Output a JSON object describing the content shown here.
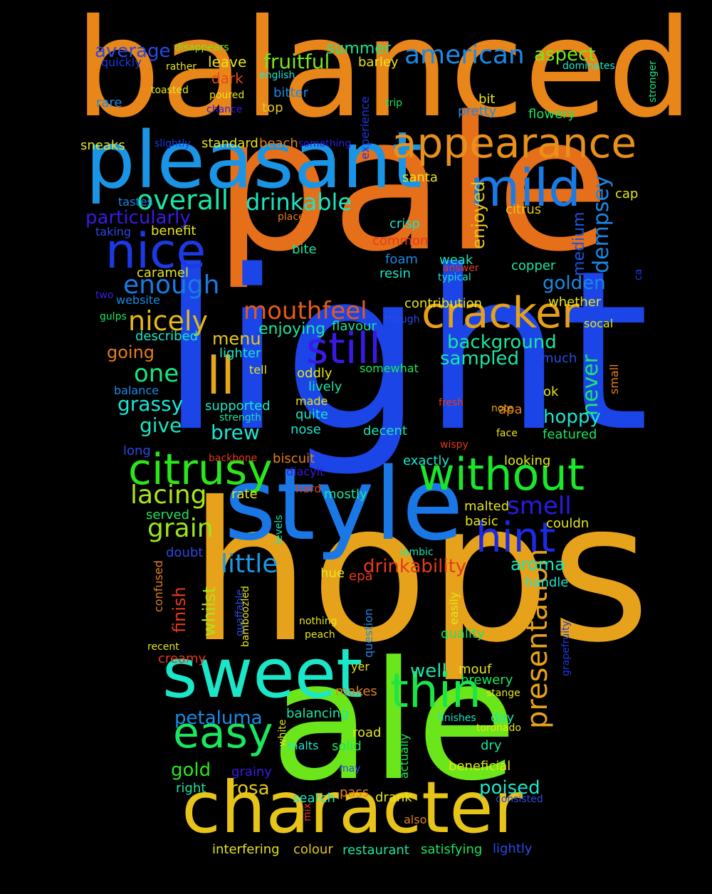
{
  "words": [
    {
      "t": "balanced",
      "c": "#e8861a"
    },
    {
      "t": "pale",
      "c": "#e66f1a"
    },
    {
      "t": "light",
      "c": "#1b45e6"
    },
    {
      "t": "hops",
      "c": "#e6a21a"
    },
    {
      "t": "ale",
      "c": "#6be61a"
    },
    {
      "t": "style",
      "c": "#1a78e6"
    },
    {
      "t": "pleasant",
      "c": "#1a95e6"
    },
    {
      "t": "character",
      "c": "#e6c41a"
    },
    {
      "t": "sweet",
      "c": "#1ae6c8"
    },
    {
      "t": "appearance",
      "c": "#e8901a"
    },
    {
      "t": "mild",
      "c": "#1a7ae6"
    },
    {
      "t": "nice",
      "c": "#1a3ae6"
    },
    {
      "t": "without",
      "c": "#1ae62a"
    },
    {
      "t": "citrusy",
      "c": "#2ae61a"
    },
    {
      "t": "cracker",
      "c": "#e6a01a"
    },
    {
      "t": "thin",
      "c": "#1ae648"
    },
    {
      "t": "still",
      "c": "#3a1ae6"
    },
    {
      "t": "ll",
      "c": "#e6a81a"
    },
    {
      "t": "hint",
      "c": "#1a2ae6"
    },
    {
      "t": "easy",
      "c": "#1ae660"
    },
    {
      "t": "presentation",
      "c": "#e6a21a"
    },
    {
      "t": "american",
      "c": "#1a8ae6"
    },
    {
      "t": "overall",
      "c": "#1ae6a8"
    },
    {
      "t": "drinkable",
      "c": "#1ae6c0"
    },
    {
      "t": "mouthfeel",
      "c": "#e65a1a"
    },
    {
      "t": "enough",
      "c": "#1a7ae6"
    },
    {
      "t": "nicely",
      "c": "#e6b81a"
    },
    {
      "t": "lacing",
      "c": "#a8e61a"
    },
    {
      "t": "grain",
      "c": "#9ae61a"
    },
    {
      "t": "little",
      "c": "#1a9ae6"
    },
    {
      "t": "one",
      "c": "#1ae680"
    },
    {
      "t": "dempsey",
      "c": "#1a88e6"
    },
    {
      "t": "smell",
      "c": "#2a1ae6"
    },
    {
      "t": "never",
      "c": "#1ae670"
    },
    {
      "t": "drinkability",
      "c": "#e63a1a"
    },
    {
      "t": "fruitful",
      "c": "#78e61a"
    },
    {
      "t": "aspect",
      "c": "#78e61a"
    },
    {
      "t": "summer",
      "c": "#1ae690"
    },
    {
      "t": "average",
      "c": "#2a4ae6"
    },
    {
      "t": "particularly",
      "c": "#3a1ae6"
    },
    {
      "t": "enjoyed",
      "c": "#e6c81a"
    },
    {
      "t": "medium",
      "c": "#1a58e6"
    },
    {
      "t": "golden",
      "c": "#1a8ae6"
    },
    {
      "t": "background",
      "c": "#1ae6a0"
    },
    {
      "t": "sampled",
      "c": "#1ae6a8"
    },
    {
      "t": "hoppy",
      "c": "#1ae6d0"
    },
    {
      "t": "poised",
      "c": "#1ae6c8"
    },
    {
      "t": "rosa",
      "c": "#e6c81a"
    },
    {
      "t": "petaluma",
      "c": "#1a8ae6"
    },
    {
      "t": "gold",
      "c": "#2ae61a"
    },
    {
      "t": "grassy",
      "c": "#1ae6d8"
    },
    {
      "t": "give",
      "c": "#1ae6c0"
    },
    {
      "t": "brew",
      "c": "#1ae6d0"
    },
    {
      "t": "menu",
      "c": "#e6c81a"
    },
    {
      "t": "finish",
      "c": "#e63a1a"
    },
    {
      "t": "whilst",
      "c": "#a8e61a"
    },
    {
      "t": "well",
      "c": "#1ae6a8"
    },
    {
      "t": "aroma",
      "c": "#1ae6b8"
    },
    {
      "t": "going",
      "c": "#e6801a"
    },
    {
      "t": "enjoying",
      "c": "#1ae6a0"
    },
    {
      "t": "disappears",
      "c": "#78e61a"
    },
    {
      "t": "quickly",
      "c": "#1a3ae6"
    },
    {
      "t": "rather",
      "c": "#e6e61a"
    },
    {
      "t": "english",
      "c": "#1ae6d0"
    },
    {
      "t": "toasted",
      "c": "#e6e61a"
    },
    {
      "t": "poured",
      "c": "#e6e61a"
    },
    {
      "t": "dark",
      "c": "#e64a1a"
    },
    {
      "t": "leave",
      "c": "#e6e61a"
    },
    {
      "t": "barley",
      "c": "#e6e61a"
    },
    {
      "t": "rare",
      "c": "#1a8ae6"
    },
    {
      "t": "chance",
      "c": "#3a1ae6"
    },
    {
      "t": "bitter",
      "c": "#1a8ae6"
    },
    {
      "t": "top",
      "c": "#e6c81a"
    },
    {
      "t": "experience",
      "c": "#1a3ae6"
    },
    {
      "t": "trip",
      "c": "#1ae660"
    },
    {
      "t": "pretty",
      "c": "#1a8ae6"
    },
    {
      "t": "bit",
      "c": "#e6e61a"
    },
    {
      "t": "dominates",
      "c": "#1ae6c8"
    },
    {
      "t": "flowery",
      "c": "#1ae660"
    },
    {
      "t": "stronger",
      "c": "#1ae680"
    },
    {
      "t": "slightly",
      "c": "#1a3ae6"
    },
    {
      "t": "standard",
      "c": "#e6e61a"
    },
    {
      "t": "beach",
      "c": "#e6801a"
    },
    {
      "t": "something",
      "c": "#2a1ae6"
    },
    {
      "t": "sneaks",
      "c": "#e6e61a"
    },
    {
      "t": "santa",
      "c": "#e6e61a"
    },
    {
      "t": "tastes",
      "c": "#1a8ae6"
    },
    {
      "t": "taking",
      "c": "#2a4ae6"
    },
    {
      "t": "benefit",
      "c": "#e6e61a"
    },
    {
      "t": "place",
      "c": "#e6801a"
    },
    {
      "t": "crisp",
      "c": "#1ae6c8"
    },
    {
      "t": "common",
      "c": "#e63a1a"
    },
    {
      "t": "citrus",
      "c": "#e6c81a"
    },
    {
      "t": "cap",
      "c": "#e6e61a"
    },
    {
      "t": "caramel",
      "c": "#e6e61a"
    },
    {
      "t": "bite",
      "c": "#1ae6a0"
    },
    {
      "t": "foam",
      "c": "#1a8ae6"
    },
    {
      "t": "resin",
      "c": "#1ae6c8"
    },
    {
      "t": "weak",
      "c": "#1ae6b8"
    },
    {
      "t": "answer",
      "c": "#e63a1a"
    },
    {
      "t": "typical",
      "c": "#1ae6d0"
    },
    {
      "t": "copper",
      "c": "#1ae6a8"
    },
    {
      "t": "ca",
      "c": "#1a3ae6"
    },
    {
      "t": "two",
      "c": "#3a1ae6"
    },
    {
      "t": "website",
      "c": "#1a8ae6"
    },
    {
      "t": "gulps",
      "c": "#1ae660"
    },
    {
      "t": "described",
      "c": "#1ae6c8"
    },
    {
      "t": "contribution",
      "c": "#e6e61a"
    },
    {
      "t": "though",
      "c": "#2a4ae6"
    },
    {
      "t": "flavour",
      "c": "#1ae6a0"
    },
    {
      "t": "whether",
      "c": "#e6e61a"
    },
    {
      "t": "socal",
      "c": "#e6e61a"
    },
    {
      "t": "lighter",
      "c": "#1ae6d0"
    },
    {
      "t": "tell",
      "c": "#e6e61a"
    },
    {
      "t": "somewhat",
      "c": "#1ae660"
    },
    {
      "t": "much",
      "c": "#2a4ae6"
    },
    {
      "t": "small",
      "c": "#e6801a"
    },
    {
      "t": "oddly",
      "c": "#e6e61a"
    },
    {
      "t": "lively",
      "c": "#1ae6a8"
    },
    {
      "t": "balance",
      "c": "#1a8ae6"
    },
    {
      "t": "made",
      "c": "#e6e61a"
    },
    {
      "t": "apa",
      "c": "#e6801a"
    },
    {
      "t": "ok",
      "c": "#e6e61a"
    },
    {
      "t": "supported",
      "c": "#1ae6c8"
    },
    {
      "t": "strength",
      "c": "#1ae6a0"
    },
    {
      "t": "quite",
      "c": "#1ae6d0"
    },
    {
      "t": "fresh",
      "c": "#e63a1a"
    },
    {
      "t": "note",
      "c": "#e6a81a"
    },
    {
      "t": "nose",
      "c": "#1ae6c8"
    },
    {
      "t": "decent",
      "c": "#1ae6b8"
    },
    {
      "t": "face",
      "c": "#e6e61a"
    },
    {
      "t": "featured",
      "c": "#1ae660"
    },
    {
      "t": "long",
      "c": "#2a4ae6"
    },
    {
      "t": "wispy",
      "c": "#e63a1a"
    },
    {
      "t": "backbone",
      "c": "#e63a1a"
    },
    {
      "t": "biscuit",
      "c": "#e6801a"
    },
    {
      "t": "exactly",
      "c": "#1ae6d0"
    },
    {
      "t": "looking",
      "c": "#e6e61a"
    },
    {
      "t": "diacylt",
      "c": "#3a1ae6"
    },
    {
      "t": "hard",
      "c": "#e63a1a"
    },
    {
      "t": "rate",
      "c": "#e6e61a"
    },
    {
      "t": "mostly",
      "c": "#1ae6a0"
    },
    {
      "t": "served",
      "c": "#1ae660"
    },
    {
      "t": "levels",
      "c": "#1ae6b8"
    },
    {
      "t": "malted",
      "c": "#e6e61a"
    },
    {
      "t": "basic",
      "c": "#e6e61a"
    },
    {
      "t": "couldn",
      "c": "#e6e61a"
    },
    {
      "t": "doubt",
      "c": "#2a4ae6"
    },
    {
      "t": "lambic",
      "c": "#1ae6b8"
    },
    {
      "t": "hue",
      "c": "#e6e61a"
    },
    {
      "t": "epa",
      "c": "#e63a1a"
    },
    {
      "t": "handle",
      "c": "#1ae6d0"
    },
    {
      "t": "confused",
      "c": "#e6801a"
    },
    {
      "t": "quaffable",
      "c": "#2a4ae6"
    },
    {
      "t": "bamboozled",
      "c": "#e6e61a"
    },
    {
      "t": "nothing",
      "c": "#e6e61a"
    },
    {
      "t": "peach",
      "c": "#e6e61a"
    },
    {
      "t": "question",
      "c": "#1a8ae6"
    },
    {
      "t": "easily",
      "c": "#e6e61a"
    },
    {
      "t": "quality",
      "c": "#1ae660"
    },
    {
      "t": "grapefruity",
      "c": "#1a3ae6"
    },
    {
      "t": "recent",
      "c": "#e6e61a"
    },
    {
      "t": "creamy",
      "c": "#e63a1a"
    },
    {
      "t": "yer",
      "c": "#e6e61a"
    },
    {
      "t": "mouf",
      "c": "#e6e61a"
    },
    {
      "t": "brewery",
      "c": "#1ae660"
    },
    {
      "t": "stange",
      "c": "#e6e61a"
    },
    {
      "t": "makes",
      "c": "#e6801a"
    },
    {
      "t": "day",
      "c": "#1ae6b8"
    },
    {
      "t": "finishes",
      "c": "#1ae6c8"
    },
    {
      "t": "balancing",
      "c": "#1ae6a8"
    },
    {
      "t": "white",
      "c": "#e6e61a"
    },
    {
      "t": "road",
      "c": "#e6e61a"
    },
    {
      "t": "toronado",
      "c": "#e6e61a"
    },
    {
      "t": "malts",
      "c": "#1ae6c8"
    },
    {
      "t": "solid",
      "c": "#1ae660"
    },
    {
      "t": "actually",
      "c": "#1ae660"
    },
    {
      "t": "dry",
      "c": "#1ae6a0"
    },
    {
      "t": "grainy",
      "c": "#3a1ae6"
    },
    {
      "t": "may",
      "c": "#2a4ae6"
    },
    {
      "t": "beneficial",
      "c": "#e6e61a"
    },
    {
      "t": "right",
      "c": "#1ae6a0"
    },
    {
      "t": "pass",
      "c": "#e6801a"
    },
    {
      "t": "drank",
      "c": "#e6e61a"
    },
    {
      "t": "search",
      "c": "#1ae6c8"
    },
    {
      "t": "consisted",
      "c": "#2a4ae6"
    },
    {
      "t": "mix",
      "c": "#e63a1a"
    },
    {
      "t": "also",
      "c": "#e6801a"
    },
    {
      "t": "interfering",
      "c": "#e6e61a"
    },
    {
      "t": "colour",
      "c": "#e6c81a"
    },
    {
      "t": "restaurant",
      "c": "#1ae6a0"
    },
    {
      "t": "satisfying",
      "c": "#1ae660"
    },
    {
      "t": "lightly",
      "c": "#2a4ae6"
    }
  ]
}
